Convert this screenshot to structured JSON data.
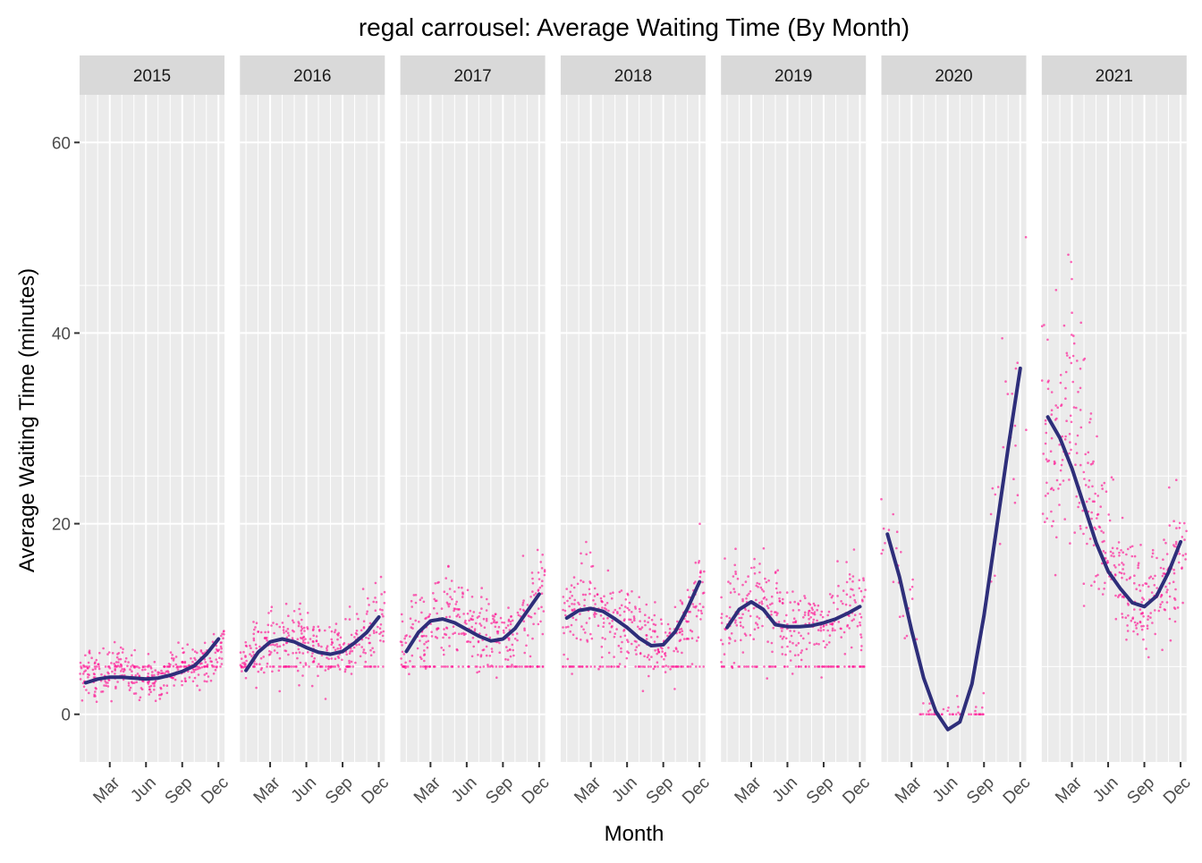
{
  "chart_data": {
    "type": "scatter",
    "title": "regal carrousel: Average Waiting Time (By Month)",
    "xlabel": "Month",
    "ylabel": "Average Waiting Time (minutes)",
    "ylim": [
      -5,
      65
    ],
    "y_ticks": [
      0,
      20,
      40,
      60
    ],
    "x_domain_months": [
      0.5,
      12.5
    ],
    "x_ticks": [
      {
        "label": "Mar",
        "month": 3
      },
      {
        "label": "Jun",
        "month": 6
      },
      {
        "label": "Sep",
        "month": 9
      },
      {
        "label": "Dec",
        "month": 12
      }
    ],
    "grid": true,
    "colors": {
      "points": "#ff1493",
      "smooth_line": "#2e2e7a",
      "panel_background": "#ebebeb",
      "strip_background": "#d9d9d9",
      "gridline": "#ffffff"
    },
    "panels": [
      {
        "facet": "2015",
        "month_means": [
          4.5,
          4.2,
          4.3,
          5.0,
          4.4,
          4.0,
          3.9,
          4.2,
          4.8,
          5.0,
          5.5,
          7.0
        ],
        "smooth": [
          [
            1,
            3.3
          ],
          [
            2,
            3.7
          ],
          [
            3,
            3.9
          ],
          [
            4,
            3.9
          ],
          [
            5,
            3.8
          ],
          [
            6,
            3.7
          ],
          [
            7,
            3.8
          ],
          [
            8,
            4.1
          ],
          [
            9,
            4.5
          ],
          [
            10,
            5.1
          ],
          [
            11,
            6.3
          ],
          [
            12,
            7.9
          ]
        ]
      },
      {
        "facet": "2016",
        "month_means": [
          5.8,
          6.8,
          8.0,
          8.3,
          7.8,
          7.3,
          7.0,
          6.8,
          6.4,
          7.2,
          8.5,
          10.0
        ],
        "smooth": [
          [
            1,
            4.6
          ],
          [
            2,
            6.5
          ],
          [
            3,
            7.6
          ],
          [
            4,
            7.9
          ],
          [
            5,
            7.6
          ],
          [
            6,
            7.0
          ],
          [
            7,
            6.5
          ],
          [
            8,
            6.3
          ],
          [
            9,
            6.6
          ],
          [
            10,
            7.5
          ],
          [
            11,
            8.6
          ],
          [
            12,
            10.2
          ]
        ]
      },
      {
        "facet": "2017",
        "month_means": [
          7.5,
          8.8,
          9.8,
          10.3,
          10.0,
          9.6,
          9.0,
          8.5,
          7.8,
          8.5,
          10.5,
          12.5
        ],
        "smooth": [
          [
            1,
            6.6
          ],
          [
            2,
            8.6
          ],
          [
            3,
            9.8
          ],
          [
            4,
            10.0
          ],
          [
            5,
            9.6
          ],
          [
            6,
            8.9
          ],
          [
            7,
            8.2
          ],
          [
            8,
            7.7
          ],
          [
            9,
            7.9
          ],
          [
            10,
            9.0
          ],
          [
            11,
            10.8
          ],
          [
            12,
            12.6
          ]
        ]
      },
      {
        "facet": "2018",
        "month_means": [
          10.5,
          11.0,
          11.2,
          10.5,
          10.0,
          9.5,
          8.5,
          8.0,
          7.5,
          8.0,
          10.0,
          13.0
        ],
        "smooth": [
          [
            1,
            10.1
          ],
          [
            2,
            10.9
          ],
          [
            3,
            11.1
          ],
          [
            4,
            10.8
          ],
          [
            5,
            10.0
          ],
          [
            6,
            9.1
          ],
          [
            7,
            8.0
          ],
          [
            8,
            7.2
          ],
          [
            9,
            7.3
          ],
          [
            10,
            8.7
          ],
          [
            11,
            11.1
          ],
          [
            12,
            13.9
          ]
        ]
      },
      {
        "facet": "2019",
        "month_means": [
          10.0,
          11.0,
          11.5,
          11.0,
          10.0,
          9.5,
          9.3,
          9.2,
          9.5,
          9.8,
          10.5,
          11.0
        ],
        "smooth": [
          [
            1,
            9.1
          ],
          [
            2,
            11.0
          ],
          [
            3,
            11.8
          ],
          [
            4,
            11.0
          ],
          [
            5,
            9.4
          ],
          [
            6,
            9.2
          ],
          [
            7,
            9.2
          ],
          [
            8,
            9.3
          ],
          [
            9,
            9.6
          ],
          [
            10,
            10.0
          ],
          [
            11,
            10.6
          ],
          [
            12,
            11.3
          ]
        ]
      },
      {
        "facet": "2020",
        "month_means": [
          18.0,
          14.0,
          11.0,
          0.0,
          0.0,
          0.0,
          0.0,
          0.0,
          0.0,
          20.0,
          30.0,
          36.0
        ],
        "smooth": [
          [
            1,
            18.9
          ],
          [
            2,
            14.4
          ],
          [
            3,
            8.8
          ],
          [
            4,
            3.8
          ],
          [
            5,
            0.3
          ],
          [
            6,
            -1.6
          ],
          [
            7,
            -0.8
          ],
          [
            8,
            3.2
          ],
          [
            9,
            10.4
          ],
          [
            10,
            19.2
          ],
          [
            11,
            28.0
          ],
          [
            12,
            36.3
          ]
        ]
      },
      {
        "facet": "2021",
        "month_means": [
          28.0,
          30.0,
          33.0,
          26.0,
          21.0,
          17.0,
          14.0,
          12.0,
          11.0,
          12.5,
          15.0,
          17.0
        ],
        "smooth": [
          [
            1,
            31.2
          ],
          [
            2,
            29.0
          ],
          [
            3,
            25.8
          ],
          [
            4,
            21.9
          ],
          [
            5,
            18.0
          ],
          [
            6,
            15.0
          ],
          [
            7,
            13.2
          ],
          [
            8,
            11.7
          ],
          [
            9,
            11.3
          ],
          [
            10,
            12.4
          ],
          [
            11,
            14.9
          ],
          [
            12,
            18.1
          ]
        ]
      }
    ]
  }
}
